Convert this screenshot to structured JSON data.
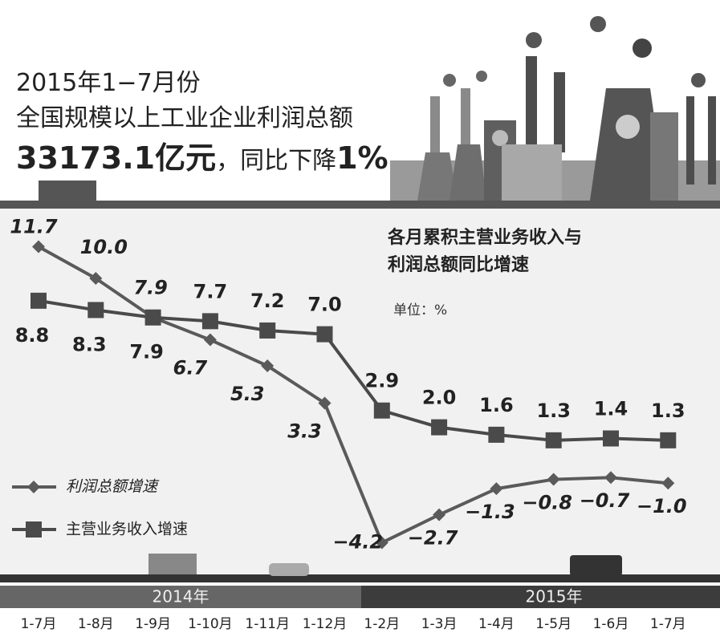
{
  "header": {
    "line1": "2015年1−7月份",
    "line2": "全国规模以上工业企业利润总额",
    "amount": "33173.1亿元",
    "mid": "，同比下降",
    "pct": "1%"
  },
  "chart_data": {
    "type": "line",
    "title": "各月累积主营业务收入与利润总额同比增速",
    "unit": "单位：%",
    "periods": [
      "2014年",
      "2015年"
    ],
    "categories": [
      "1-7月",
      "1-8月",
      "1-9月",
      "1-10月",
      "1-11月",
      "1-12月",
      "1-2月",
      "1-3月",
      "1-4月",
      "1-5月",
      "1-6月",
      "1-7月"
    ],
    "series": [
      {
        "name": "利润总额增速",
        "color": "#5a5a5a",
        "marker": "diamond",
        "values": [
          11.7,
          10.0,
          7.9,
          6.7,
          5.3,
          3.3,
          -4.2,
          -2.7,
          -1.3,
          -0.8,
          -0.7,
          -1.0
        ],
        "value_labels": [
          "11.7",
          "10.0",
          "7.9",
          "6.7",
          "5.3",
          "3.3",
          "−4.2",
          "−2.7",
          "−1.3",
          "−0.8",
          "−0.7",
          "−1.0"
        ]
      },
      {
        "name": "主营业务收入增速",
        "color": "#4a4a4a",
        "marker": "square",
        "values": [
          8.8,
          8.3,
          7.9,
          7.7,
          7.2,
          7.0,
          2.9,
          2.0,
          1.6,
          1.3,
          1.4,
          1.3
        ],
        "value_labels": [
          "8.8",
          "8.3",
          "7.9",
          "7.7",
          "7.2",
          "7.0",
          "2.9",
          "2.0",
          "1.6",
          "1.3",
          "1.4",
          "1.3"
        ]
      }
    ]
  }
}
